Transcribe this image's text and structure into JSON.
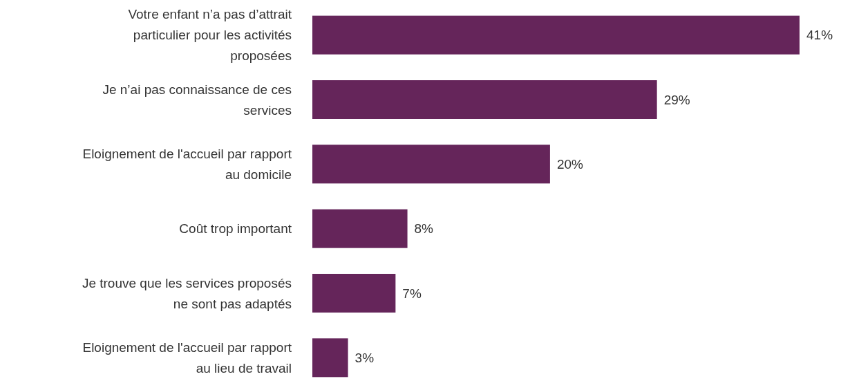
{
  "chart_data": {
    "type": "bar",
    "orientation": "horizontal",
    "categories": [
      "Votre enfant n’a pas d’attrait particulier pour les activités proposées",
      "Je n’ai pas connaissance de ces services",
      "Eloignement de l'accueil par rapport au domicile",
      "Coût trop important",
      "Je trouve que les services proposés ne sont pas adaptés",
      "Eloignement de l'accueil par rapport au lieu de travail"
    ],
    "values": [
      41,
      29,
      20,
      8,
      7,
      3
    ],
    "value_labels": [
      "41%",
      "29%",
      "20%",
      "8%",
      "7%",
      "3%"
    ],
    "color": "#65255a"
  }
}
